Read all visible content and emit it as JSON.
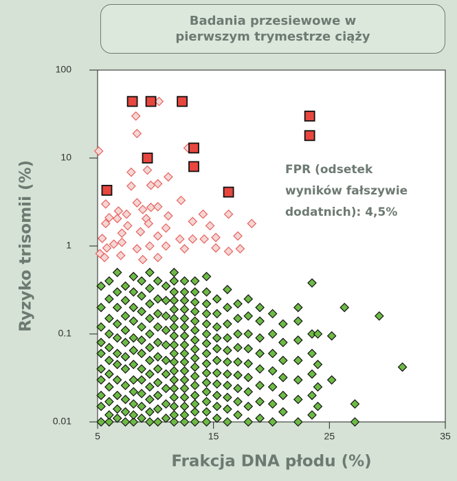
{
  "chart_data": {
    "type": "scatter",
    "title": "Badania przesiewowe w pierwszym trymestrze ciąży",
    "annotation": "FPR (odsetek wyników fałszywie dodatnich): 4,5%",
    "x_label": "Frakcja DNA płodu (%)",
    "y_label": "Ryzyko trisomii (%)",
    "log_y": true,
    "xlim": [
      5,
      35
    ],
    "ylim": [
      0.01,
      100
    ],
    "xticks": [
      5,
      15,
      25,
      35
    ],
    "yticks": [
      0.01,
      0.1,
      1,
      10,
      100
    ],
    "series": [
      {
        "marker": "square",
        "color": "#e8473f",
        "stroke": "#111111",
        "x": [
          8,
          9.6,
          12.3,
          23.3,
          23.3,
          13.3,
          9.3,
          13.3,
          5.8,
          16.3
        ],
        "values": [
          44,
          44,
          44,
          30,
          18,
          13,
          10,
          8,
          4.3,
          4.1
        ]
      },
      {
        "marker": "diamond",
        "color": "#f4d6d6",
        "stroke": "#e8605a",
        "x": [
          10.3,
          8.3,
          8.4,
          5.1,
          12.8,
          7.9,
          9.3,
          11.1,
          7.9,
          9.6,
          10.2,
          5.7,
          6.8,
          8.4,
          8.9,
          9.6,
          10.2,
          12.2,
          6,
          6.7,
          7.5,
          9.2,
          11.1,
          14.1,
          16.3,
          5.7,
          7.6,
          9.4,
          10.9,
          13.2,
          14.7,
          18.3,
          5.4,
          7.1,
          8.7,
          10.2,
          12.1,
          13.2,
          14.2,
          15.2,
          17.1,
          5.2,
          5.8,
          6.4,
          7.1,
          8.4,
          9.5,
          10.9,
          12.5,
          15.2,
          16.3,
          17.3,
          5.6,
          8.9,
          10.2,
          7
        ],
        "values": [
          44,
          30,
          19,
          12,
          13,
          6.9,
          7.3,
          6.1,
          4.8,
          4.9,
          5.1,
          3,
          2.5,
          3.1,
          2.6,
          2.75,
          2.8,
          3.3,
          2.1,
          2.05,
          2.3,
          2.05,
          2.2,
          2.3,
          2.3,
          1.8,
          1.7,
          1.8,
          1.6,
          1.9,
          1.7,
          1.8,
          1.22,
          1.4,
          1.45,
          1.3,
          1.2,
          1.2,
          1.2,
          1.25,
          1.3,
          0.82,
          0.95,
          1.05,
          1.1,
          0.93,
          1,
          1,
          0.93,
          0.95,
          0.87,
          0.93,
          0.74,
          0.7,
          0.74,
          0.78
        ]
      },
      {
        "marker": "diamond",
        "color": "#6dbb45",
        "stroke": "#111111",
        "x": [
          5.3,
          5.3,
          5.3,
          5.3,
          5.3,
          5.3,
          5.3,
          5.3,
          5.3,
          5.3,
          6,
          6,
          6,
          6,
          6,
          6,
          6,
          6,
          6,
          6,
          6,
          6.7,
          6.7,
          6.7,
          6.7,
          6.7,
          6.7,
          6.7,
          6.7,
          6.7,
          6.7,
          6.7,
          7.4,
          7.4,
          7.4,
          7.4,
          7.4,
          7.4,
          7.4,
          7.4,
          7.4,
          7.4,
          7.4,
          8.1,
          8.1,
          8.1,
          8.1,
          8.1,
          8.1,
          8.1,
          8.1,
          8.1,
          8.1,
          8.1,
          8.1,
          8.8,
          8.8,
          8.8,
          8.8,
          8.8,
          8.8,
          8.8,
          8.8,
          8.8,
          8.8,
          8.8,
          9.5,
          9.5,
          9.5,
          9.5,
          9.5,
          9.5,
          9.5,
          9.5,
          9.5,
          9.5,
          9.5,
          9.5,
          10.2,
          10.2,
          10.2,
          10.2,
          10.2,
          10.2,
          10.2,
          10.2,
          10.2,
          10.2,
          10.2,
          10.9,
          10.9,
          10.9,
          10.9,
          10.9,
          10.9,
          10.9,
          10.9,
          10.9,
          10.9,
          11.6,
          11.6,
          11.6,
          11.6,
          11.6,
          11.6,
          11.6,
          11.6,
          11.6,
          11.6,
          11.6,
          11.6,
          11.6,
          11.6,
          11.6,
          11.6,
          11.6,
          11.6,
          12.5,
          12.5,
          12.5,
          12.5,
          12.5,
          12.5,
          12.5,
          12.5,
          12.5,
          12.5,
          12.5,
          12.5,
          12.5,
          12.5,
          12.5,
          12.5,
          12.5,
          13.4,
          13.4,
          13.4,
          13.4,
          13.4,
          13.4,
          13.4,
          13.4,
          13.4,
          13.4,
          13.4,
          13.4,
          13.4,
          13.4,
          13.4,
          13.4,
          14.4,
          14.4,
          14.4,
          14.4,
          14.4,
          14.4,
          14.4,
          14.4,
          14.4,
          14.4,
          14.4,
          14.4,
          14.4,
          14.4,
          14.4,
          15.3,
          15.3,
          15.3,
          15.3,
          15.3,
          15.3,
          15.3,
          15.3,
          15.3,
          15.3,
          15.3,
          16.2,
          16.2,
          16.2,
          16.2,
          16.2,
          16.2,
          16.2,
          16.2,
          16.2,
          16.2,
          16.2,
          17.1,
          17.1,
          17.1,
          17.1,
          17.1,
          17.1,
          17.1,
          17.1,
          17.1,
          18,
          18,
          18,
          18,
          18,
          18,
          18,
          18,
          18,
          19,
          19,
          19,
          19,
          19,
          19,
          19,
          19,
          20.1,
          20.1,
          20.1,
          20.1,
          20.1,
          20.1,
          20.1,
          21,
          21,
          21,
          21,
          21,
          21,
          22.3,
          22.3,
          22.3,
          22.3,
          22.3,
          22.3,
          22.3,
          23.5,
          23.5,
          23.5,
          23.5,
          23.5,
          23.5,
          24,
          24,
          24,
          24,
          25.2,
          25.2,
          26.3,
          27.2,
          27.2,
          29.3,
          31.3
        ],
        "values": [
          0.01,
          0.015,
          0.02,
          0.03,
          0.04,
          0.06,
          0.08,
          0.12,
          0.2,
          0.35,
          0.01,
          0.012,
          0.017,
          0.025,
          0.035,
          0.05,
          0.07,
          0.1,
          0.15,
          0.25,
          0.4,
          0.011,
          0.014,
          0.02,
          0.03,
          0.045,
          0.06,
          0.09,
          0.13,
          0.2,
          0.3,
          0.5,
          0.01,
          0.013,
          0.018,
          0.026,
          0.04,
          0.055,
          0.08,
          0.11,
          0.16,
          0.24,
          0.35,
          0.01,
          0.012,
          0.016,
          0.022,
          0.03,
          0.045,
          0.065,
          0.09,
          0.14,
          0.2,
          0.3,
          0.45,
          0.011,
          0.015,
          0.021,
          0.03,
          0.04,
          0.06,
          0.085,
          0.12,
          0.18,
          0.27,
          0.4,
          0.01,
          0.013,
          0.018,
          0.025,
          0.035,
          0.05,
          0.07,
          0.1,
          0.15,
          0.22,
          0.33,
          0.5,
          0.01,
          0.014,
          0.02,
          0.028,
          0.04,
          0.055,
          0.08,
          0.12,
          0.17,
          0.25,
          0.4,
          0.011,
          0.016,
          0.024,
          0.035,
          0.05,
          0.075,
          0.11,
          0.16,
          0.24,
          0.35,
          0.01,
          0.012,
          0.015,
          0.019,
          0.024,
          0.03,
          0.038,
          0.048,
          0.06,
          0.075,
          0.095,
          0.12,
          0.15,
          0.19,
          0.24,
          0.3,
          0.4,
          0.5,
          0.01,
          0.012,
          0.015,
          0.019,
          0.024,
          0.03,
          0.038,
          0.048,
          0.06,
          0.075,
          0.095,
          0.12,
          0.15,
          0.19,
          0.24,
          0.3,
          0.4,
          0.01,
          0.013,
          0.016,
          0.02,
          0.026,
          0.033,
          0.042,
          0.053,
          0.067,
          0.085,
          0.11,
          0.14,
          0.18,
          0.23,
          0.3,
          0.4,
          0.01,
          0.013,
          0.017,
          0.022,
          0.028,
          0.036,
          0.046,
          0.06,
          0.078,
          0.1,
          0.13,
          0.17,
          0.22,
          0.3,
          0.45,
          0.011,
          0.015,
          0.02,
          0.027,
          0.036,
          0.05,
          0.068,
          0.09,
          0.12,
          0.17,
          0.25,
          0.01,
          0.014,
          0.019,
          0.026,
          0.035,
          0.048,
          0.065,
          0.09,
          0.13,
          0.2,
          0.32,
          0.012,
          0.017,
          0.024,
          0.034,
          0.048,
          0.07,
          0.1,
          0.15,
          0.22,
          0.01,
          0.015,
          0.022,
          0.032,
          0.046,
          0.068,
          0.1,
          0.16,
          0.25,
          0.011,
          0.017,
          0.026,
          0.04,
          0.06,
          0.09,
          0.14,
          0.2,
          0.01,
          0.016,
          0.025,
          0.038,
          0.06,
          0.1,
          0.17,
          0.013,
          0.02,
          0.032,
          0.05,
          0.08,
          0.13,
          0.01,
          0.018,
          0.03,
          0.05,
          0.085,
          0.14,
          0.2,
          0.012,
          0.02,
          0.035,
          0.06,
          0.1,
          0.38,
          0.015,
          0.025,
          0.045,
          0.1,
          0.03,
          0.095,
          0.2,
          0.01,
          0.016,
          0.16,
          0.042
        ]
      }
    ]
  }
}
